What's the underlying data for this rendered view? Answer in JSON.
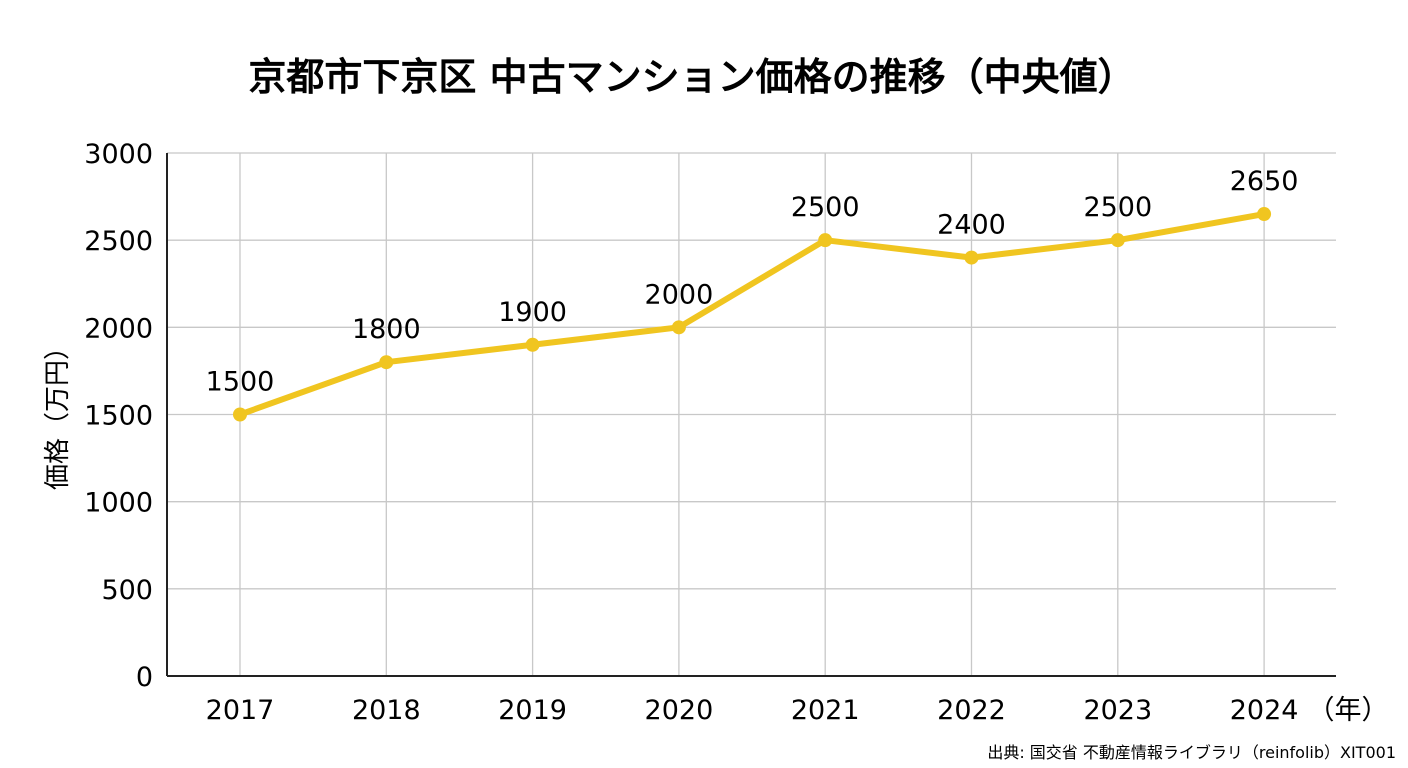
{
  "chart_data": {
    "type": "line",
    "title": "京都市下京区 中古マンション価格の推移（中央値）",
    "ylabel": "価格（万円）",
    "xunit": "（年）",
    "source": "出典: 国交省 不動産情報ライブラリ（reinfolib）XIT001",
    "categories": [
      "2017",
      "2018",
      "2019",
      "2020",
      "2021",
      "2022",
      "2023",
      "2024"
    ],
    "series": [
      {
        "values": [
          1500,
          1800,
          1900,
          2000,
          2500,
          2400,
          2500,
          2650
        ]
      }
    ],
    "data_labels": [
      "1500",
      "1800",
      "1900",
      "2000",
      "2500",
      "2400",
      "2500",
      "2650"
    ],
    "ylim": [
      0,
      3000
    ],
    "yticks": [
      0,
      500,
      1000,
      1500,
      2000,
      2500,
      3000
    ],
    "grid": true,
    "colors": {
      "line": "#F0C520",
      "grid": "#c8c8c8",
      "axis": "#222222"
    }
  }
}
